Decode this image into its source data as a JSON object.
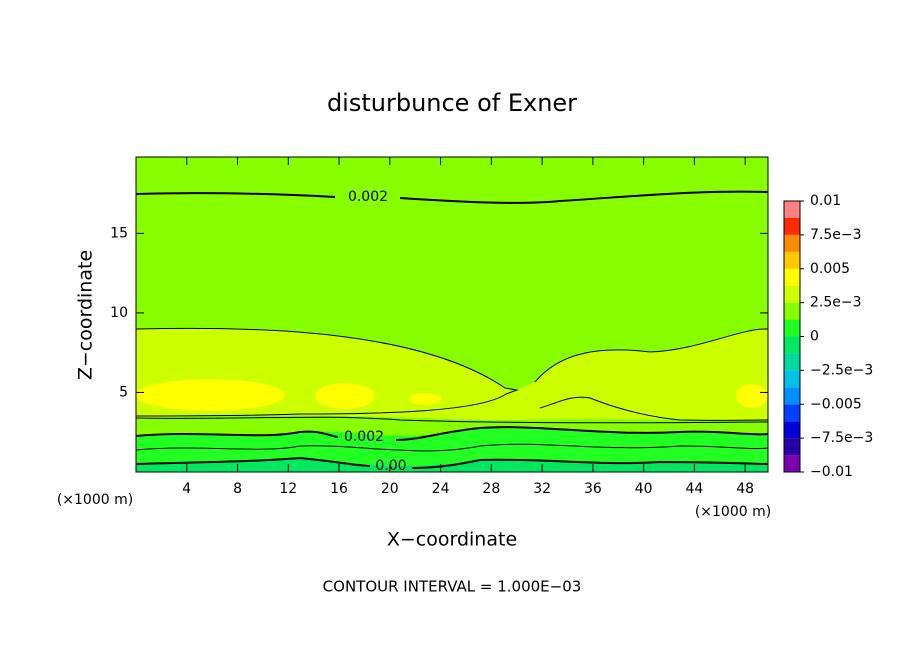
{
  "chart_data": {
    "type": "contour",
    "title": "disturbunce of Exner",
    "xlabel": "X−coordinate",
    "ylabel": "Z−coordinate",
    "x_unit": "(×1000 m)",
    "y_unit": "(×1000 m)",
    "footer": "CONTOUR INTERVAL = 1.000E−03",
    "xlim": [
      0,
      49.8
    ],
    "ylim": [
      0,
      19.8
    ],
    "xticks": [
      4,
      8,
      12,
      16,
      20,
      24,
      28,
      32,
      36,
      40,
      44,
      48
    ],
    "yticks": [
      5,
      10,
      15
    ],
    "contour_labels": [
      "0.002",
      "0.002",
      "0.00"
    ],
    "colorbar": {
      "levels": [
        -0.01,
        -0.00875,
        -0.0075,
        -0.00625,
        -0.005,
        -0.00375,
        -0.0025,
        -0.00125,
        0,
        0.00125,
        0.0025,
        0.00375,
        0.005,
        0.00625,
        0.0075,
        0.00875,
        0.01
      ],
      "colors": [
        "#7a00b0",
        "#2a00a8",
        "#0000d8",
        "#0040ff",
        "#0090ff",
        "#00c0e8",
        "#00d8a0",
        "#00e860",
        "#22ff22",
        "#88ff00",
        "#ccff00",
        "#ffff00",
        "#ffc800",
        "#ff8c00",
        "#ff2a00",
        "#ff8080"
      ],
      "ticks": [
        {
          "value": 0.01,
          "label": "0.01"
        },
        {
          "value": 0.0075,
          "label": "7.5e−3"
        },
        {
          "value": 0.005,
          "label": "0.005"
        },
        {
          "value": 0.0025,
          "label": "2.5e−3"
        },
        {
          "value": 0,
          "label": "0"
        },
        {
          "value": -0.0025,
          "label": "−2.5e−3"
        },
        {
          "value": -0.005,
          "label": "−0.005"
        },
        {
          "value": -0.0075,
          "label": "−7.5e−3"
        },
        {
          "value": -0.01,
          "label": "−0.01"
        }
      ]
    }
  }
}
